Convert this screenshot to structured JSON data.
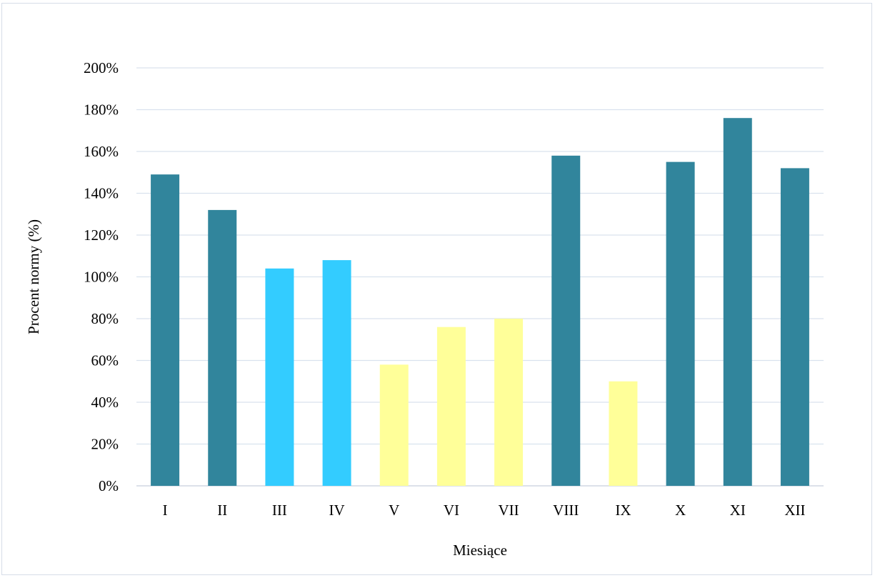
{
  "chart_data": {
    "type": "bar",
    "title": "",
    "xlabel": "Miesiące",
    "ylabel": "Procent normy (%)",
    "categories": [
      "I",
      "II",
      "III",
      "IV",
      "V",
      "VI",
      "VII",
      "VIII",
      "IX",
      "X",
      "XI",
      "XII"
    ],
    "values": [
      149,
      132,
      104,
      108,
      58,
      76,
      80,
      158,
      50,
      155,
      176,
      152
    ],
    "ylim": [
      0,
      200
    ],
    "yticks": [
      0,
      20,
      40,
      60,
      80,
      100,
      120,
      140,
      160,
      180,
      200
    ],
    "ytick_suffix": "%",
    "grid": true,
    "legend": "none",
    "colors": {
      "above_norm": "#31859c",
      "near_norm": "#33ccff",
      "below_norm": "#ffff99",
      "grid": "#d9e2ee",
      "axis": "#d0d7e2"
    },
    "bar_categories": [
      "above_norm",
      "above_norm",
      "near_norm",
      "near_norm",
      "below_norm",
      "below_norm",
      "below_norm",
      "above_norm",
      "below_norm",
      "above_norm",
      "above_norm",
      "above_norm"
    ]
  }
}
